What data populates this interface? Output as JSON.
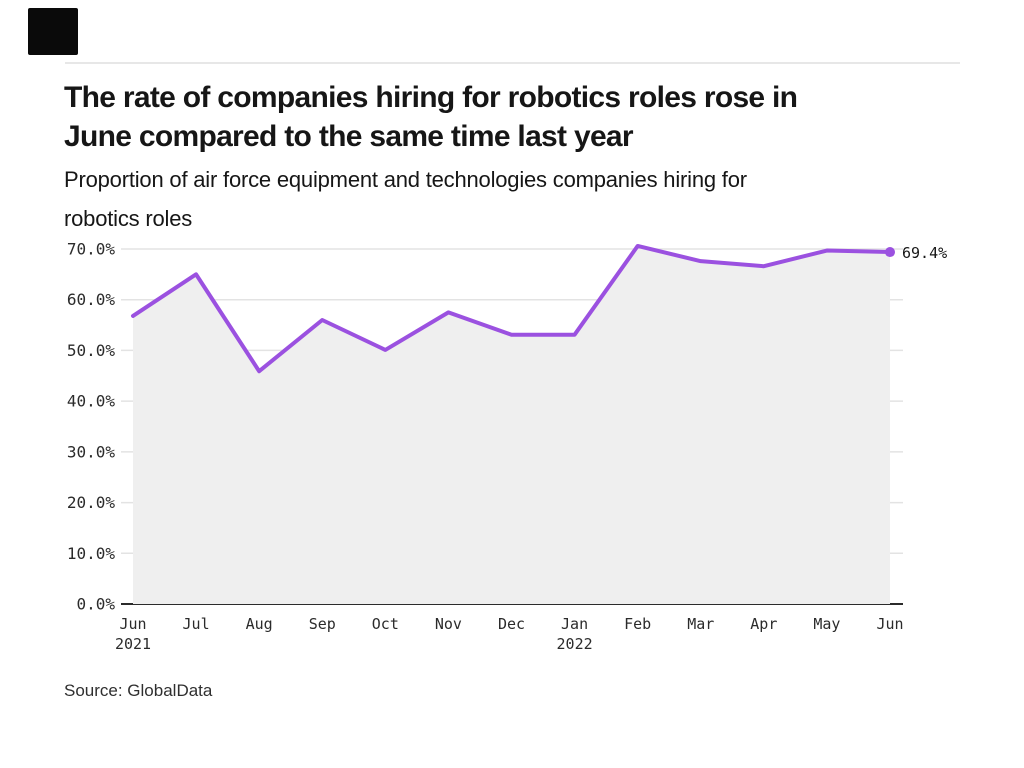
{
  "header": {
    "title_line1": "The rate of companies hiring for robotics roles rose in",
    "title_line2": "June compared to the same time last year",
    "subtitle_line1": "Proportion of air force equipment and technologies companies hiring for",
    "subtitle_line2": "robotics roles"
  },
  "icons": {
    "brand_square": "solid-black-square-logo"
  },
  "chart_data": {
    "type": "area",
    "title": "The rate of companies hiring for robotics roles rose in June compared to the same time last year",
    "subtitle": "Proportion of air force equipment and technologies companies hiring for robotics roles",
    "categories": [
      "Jun",
      "Jul",
      "Aug",
      "Sep",
      "Oct",
      "Nov",
      "Dec",
      "Jan",
      "Feb",
      "Mar",
      "Apr",
      "May",
      "Jun"
    ],
    "year_labels": [
      {
        "index": 0,
        "label": "2021"
      },
      {
        "index": 7,
        "label": "2022"
      }
    ],
    "values": [
      56.8,
      65.0,
      45.9,
      56.0,
      50.1,
      57.5,
      53.1,
      53.1,
      70.6,
      67.6,
      66.6,
      69.7,
      69.4
    ],
    "end_label": "69.4%",
    "yticks": [
      "0.0%",
      "10.0%",
      "20.0%",
      "30.0%",
      "40.0%",
      "50.0%",
      "60.0%",
      "70.0%"
    ],
    "ytick_values": [
      0,
      10,
      20,
      30,
      40,
      50,
      60,
      70
    ],
    "ylim": [
      0,
      70
    ],
    "grid": true,
    "legend": false,
    "line_color": "#9b51e0",
    "area_color": "#efefef",
    "grid_color": "#e3e3e3",
    "axis_color": "#2b2b2b"
  },
  "footer": {
    "source": "Source: GlobalData"
  }
}
